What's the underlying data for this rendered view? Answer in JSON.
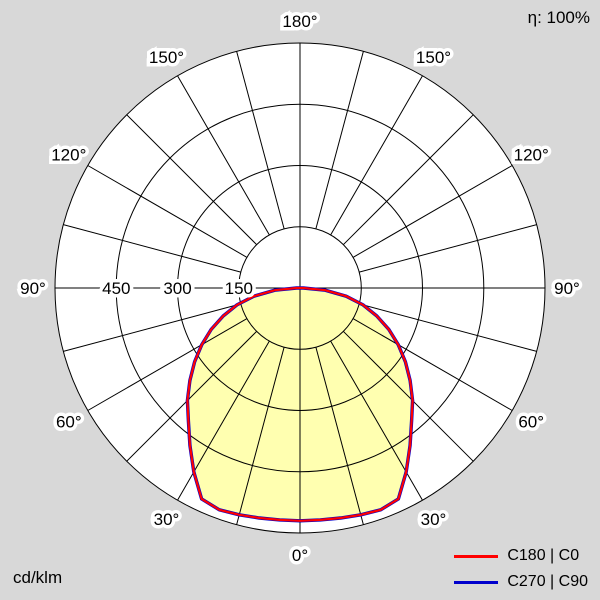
{
  "header": {
    "efficiency_label": "η: 100%"
  },
  "footer": {
    "unit_label": "cd/klm"
  },
  "legend": [
    {
      "label": "C180 | C0",
      "color": "#ff0000"
    },
    {
      "label": "C270 | C90",
      "color": "#0000cc"
    }
  ],
  "chart_data": {
    "type": "polar",
    "title": "",
    "unit": "cd/klm",
    "r_max": 600,
    "radial_ticks": [
      150,
      300,
      450,
      600
    ],
    "radial_tick_labels": [
      "150",
      "300",
      "450"
    ],
    "spoke_step_deg": 15,
    "angle_labels": [
      {
        "deg": 0,
        "text": "0°"
      },
      {
        "deg": 30,
        "text": "30°"
      },
      {
        "deg": 60,
        "text": "60°"
      },
      {
        "deg": 90,
        "text": "90°"
      },
      {
        "deg": 120,
        "text": "120°"
      },
      {
        "deg": 150,
        "text": "150°"
      },
      {
        "deg": 180,
        "text": "180°"
      }
    ],
    "gamma_deg": [
      0,
      5,
      10,
      15,
      20,
      25,
      30,
      35,
      40,
      45,
      50,
      55,
      60,
      65,
      70,
      75,
      80,
      85,
      90
    ],
    "series": [
      {
        "name": "C180 | C0",
        "color": "#ff0000",
        "values": [
          570,
          570,
          572,
          575,
          578,
          570,
          520,
          470,
          425,
          390,
          352,
          315,
          278,
          240,
          200,
          160,
          115,
          62,
          8
        ]
      },
      {
        "name": "C270 | C90",
        "color": "#0000cc",
        "values": [
          570,
          570,
          572,
          575,
          578,
          570,
          520,
          470,
          425,
          390,
          352,
          315,
          278,
          240,
          200,
          160,
          115,
          62,
          8
        ]
      }
    ],
    "fill_color": "#ffffb0",
    "grid_color": "#000000",
    "plot_background": "#ffffff",
    "outer_background": "#d8d8d8"
  }
}
